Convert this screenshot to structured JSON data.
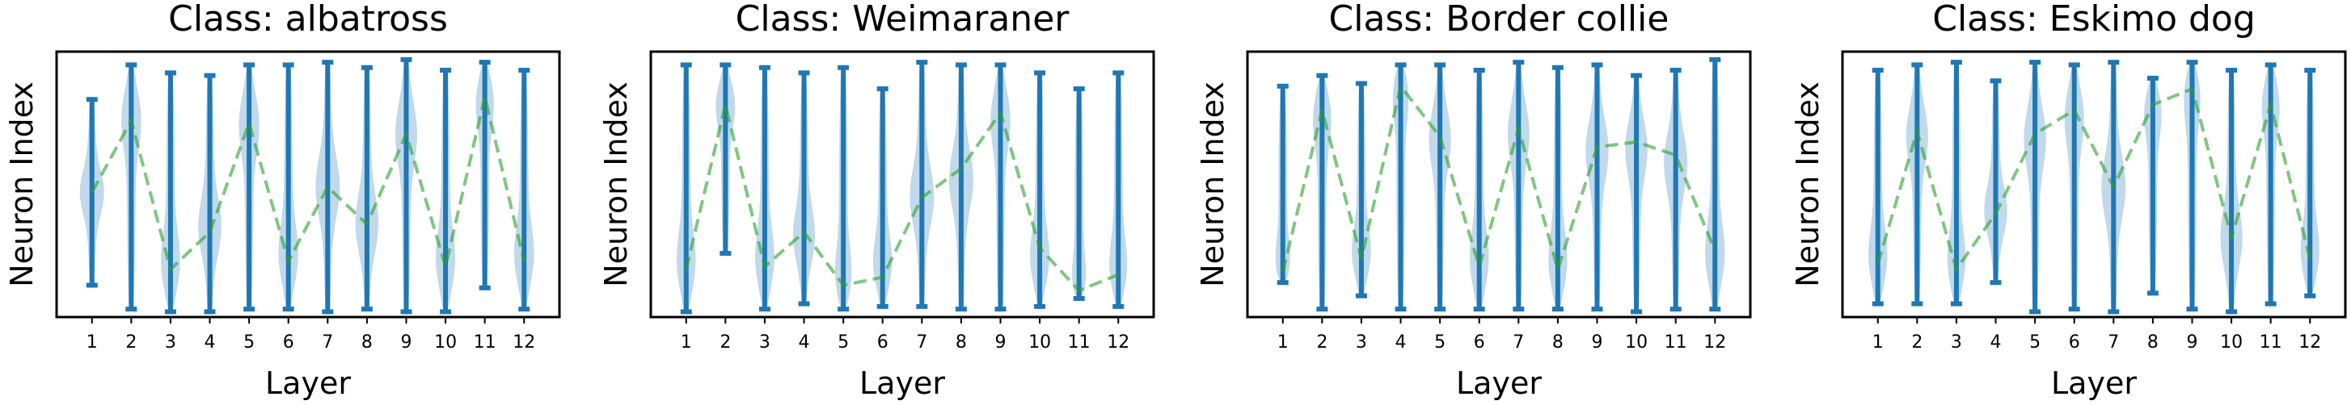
{
  "colors": {
    "violin": "#1f77b4",
    "range": "#1f77b4",
    "trend": "#2ca02c"
  },
  "chart_data": [
    {
      "type": "violin",
      "title": "Class: albatross",
      "xlabel": "Layer",
      "ylabel": "Neuron Index",
      "categories": [
        "1",
        "2",
        "3",
        "4",
        "5",
        "6",
        "7",
        "8",
        "9",
        "10",
        "11",
        "12"
      ],
      "ylim": [
        0,
        1
      ],
      "y_ticks_shown": false,
      "ranges": [
        [
          0.12,
          0.82
        ],
        [
          0.03,
          0.95
        ],
        [
          0.02,
          0.92
        ],
        [
          0.02,
          0.91
        ],
        [
          0.03,
          0.95
        ],
        [
          0.03,
          0.95
        ],
        [
          0.02,
          0.96
        ],
        [
          0.03,
          0.94
        ],
        [
          0.02,
          0.97
        ],
        [
          0.02,
          0.93
        ],
        [
          0.11,
          0.96
        ],
        [
          0.03,
          0.93
        ]
      ],
      "violin_peaks": [
        0.47,
        0.77,
        0.18,
        0.33,
        0.75,
        0.21,
        0.49,
        0.34,
        0.71,
        0.19,
        0.84,
        0.21
      ],
      "trend": [
        0.47,
        0.74,
        0.18,
        0.32,
        0.73,
        0.21,
        0.49,
        0.35,
        0.69,
        0.19,
        0.83,
        0.21
      ]
    },
    {
      "type": "violin",
      "title": "Class: Weimaraner",
      "xlabel": "Layer",
      "ylabel": "Neuron Index",
      "categories": [
        "1",
        "2",
        "3",
        "4",
        "5",
        "6",
        "7",
        "8",
        "9",
        "10",
        "11",
        "12"
      ],
      "ylim": [
        0,
        1
      ],
      "y_ticks_shown": false,
      "ranges": [
        [
          0.02,
          0.95
        ],
        [
          0.24,
          0.95
        ],
        [
          0.03,
          0.94
        ],
        [
          0.05,
          0.92
        ],
        [
          0.03,
          0.94
        ],
        [
          0.04,
          0.86
        ],
        [
          0.04,
          0.96
        ],
        [
          0.03,
          0.95
        ],
        [
          0.03,
          0.95
        ],
        [
          0.04,
          0.92
        ],
        [
          0.07,
          0.86
        ],
        [
          0.04,
          0.92
        ]
      ],
      "violin_peaks": [
        0.18,
        0.82,
        0.19,
        0.29,
        0.12,
        0.18,
        0.45,
        0.52,
        0.77,
        0.2,
        0.1,
        0.16
      ],
      "trend": [
        0.18,
        0.8,
        0.19,
        0.32,
        0.12,
        0.15,
        0.45,
        0.56,
        0.77,
        0.26,
        0.1,
        0.16
      ]
    },
    {
      "type": "violin",
      "title": "Class: Border collie",
      "xlabel": "Layer",
      "ylabel": "Neuron Index",
      "categories": [
        "1",
        "2",
        "3",
        "4",
        "5",
        "6",
        "7",
        "8",
        "9",
        "10",
        "11",
        "12"
      ],
      "ylim": [
        0,
        1
      ],
      "y_ticks_shown": false,
      "ranges": [
        [
          0.13,
          0.87
        ],
        [
          0.03,
          0.91
        ],
        [
          0.08,
          0.88
        ],
        [
          0.03,
          0.95
        ],
        [
          0.03,
          0.95
        ],
        [
          0.03,
          0.93
        ],
        [
          0.03,
          0.96
        ],
        [
          0.03,
          0.94
        ],
        [
          0.03,
          0.95
        ],
        [
          0.02,
          0.91
        ],
        [
          0.03,
          0.93
        ],
        [
          0.03,
          0.97
        ]
      ],
      "violin_peaks": [
        0.17,
        0.78,
        0.22,
        0.88,
        0.69,
        0.19,
        0.71,
        0.18,
        0.64,
        0.65,
        0.59,
        0.21
      ],
      "trend": [
        0.17,
        0.78,
        0.22,
        0.87,
        0.68,
        0.19,
        0.71,
        0.18,
        0.64,
        0.66,
        0.61,
        0.25
      ]
    },
    {
      "type": "violin",
      "title": "Class: Eskimo dog",
      "xlabel": "Layer",
      "ylabel": "Neuron Index",
      "categories": [
        "1",
        "2",
        "3",
        "4",
        "5",
        "6",
        "7",
        "8",
        "9",
        "10",
        "11",
        "12"
      ],
      "ylim": [
        0,
        1
      ],
      "y_ticks_shown": false,
      "ranges": [
        [
          0.05,
          0.93
        ],
        [
          0.05,
          0.95
        ],
        [
          0.05,
          0.96
        ],
        [
          0.13,
          0.89
        ],
        [
          0.02,
          0.96
        ],
        [
          0.03,
          0.95
        ],
        [
          0.02,
          0.96
        ],
        [
          0.09,
          0.9
        ],
        [
          0.03,
          0.96
        ],
        [
          0.02,
          0.93
        ],
        [
          0.05,
          0.95
        ],
        [
          0.08,
          0.93
        ]
      ],
      "violin_peaks": [
        0.2,
        0.7,
        0.18,
        0.39,
        0.69,
        0.78,
        0.49,
        0.8,
        0.87,
        0.28,
        0.83,
        0.22
      ],
      "trend": [
        0.2,
        0.7,
        0.18,
        0.39,
        0.69,
        0.78,
        0.49,
        0.8,
        0.86,
        0.3,
        0.8,
        0.22
      ]
    }
  ]
}
